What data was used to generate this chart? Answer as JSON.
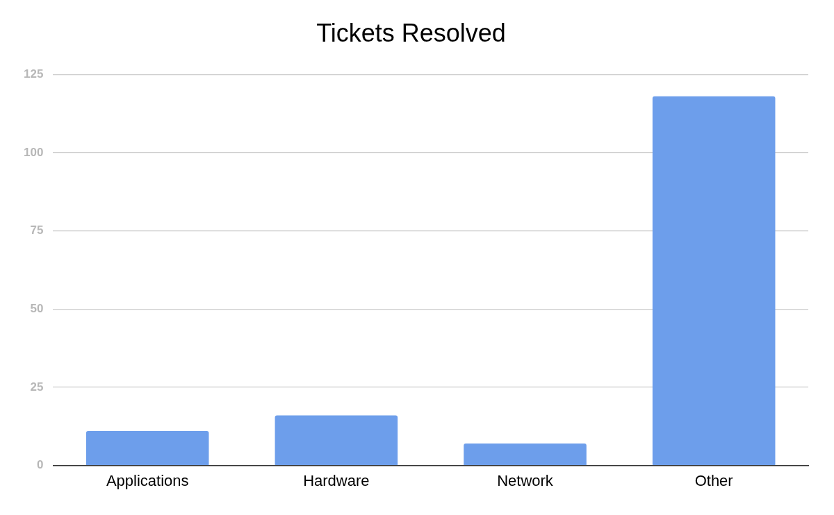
{
  "chart_data": {
    "type": "bar",
    "title": "Tickets Resolved",
    "categories": [
      "Applications",
      "Hardware",
      "Network",
      "Other"
    ],
    "values": [
      11,
      16,
      7,
      118
    ],
    "color": "#6d9eeb",
    "ylim": [
      0,
      125
    ],
    "yticks": [
      0,
      25,
      50,
      75,
      100,
      125
    ],
    "grid": "y",
    "legend": false
  }
}
